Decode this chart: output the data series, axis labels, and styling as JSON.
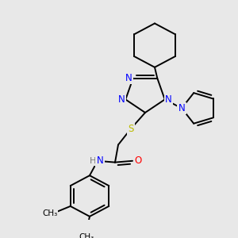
{
  "bg_color": "#e8e8e8",
  "fig_size": [
    3.0,
    3.0
  ],
  "dpi": 100,
  "atom_colors": {
    "N": "#0000FF",
    "S": "#BBBB00",
    "O": "#FF0000",
    "C": "#000000",
    "H": "#777777"
  },
  "bond_color": "#000000",
  "bond_width": 1.4,
  "font_size_atoms": 8.5,
  "font_size_methyl": 7.5
}
